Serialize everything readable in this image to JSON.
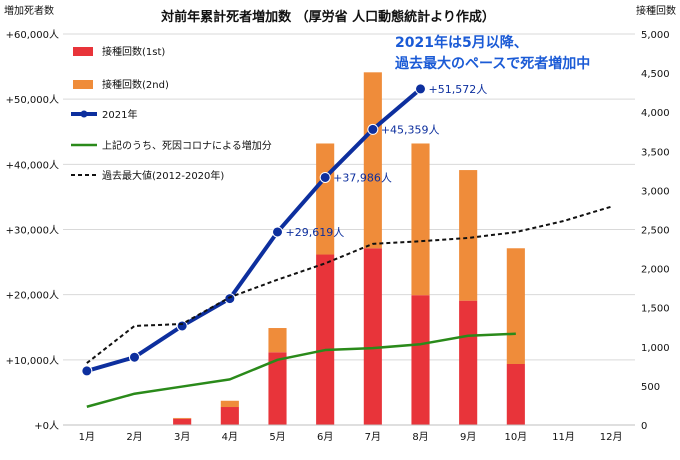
{
  "chart_data": {
    "type": "bar",
    "title": "対前年累計死者増加数 （厚労省 人口動態統計より作成）",
    "annotation": [
      "2021年は5月以降、",
      "過去最大のペースで死者増加中"
    ],
    "ylabel_left": "増加死者数",
    "ylabel_right": "接種回数",
    "categories": [
      "1月",
      "2月",
      "3月",
      "4月",
      "5月",
      "6月",
      "7月",
      "8月",
      "9月",
      "10月",
      "11月",
      "12月"
    ],
    "ylim_left": [
      0,
      60000
    ],
    "ylim_right": [
      0,
      5000
    ],
    "left_ticks": [
      {
        "value": 0,
        "label": "+0人"
      },
      {
        "value": 10000,
        "label": "+10,000人"
      },
      {
        "value": 20000,
        "label": "+20,000人"
      },
      {
        "value": 30000,
        "label": "+30,000人"
      },
      {
        "value": 40000,
        "label": "+40,000人"
      },
      {
        "value": 50000,
        "label": "+50,000人"
      },
      {
        "value": 60000,
        "label": "+60,000人"
      }
    ],
    "right_ticks": [
      {
        "value": 0,
        "label": "0"
      },
      {
        "value": 500,
        "label": "500"
      },
      {
        "value": 1000,
        "label": "1,000"
      },
      {
        "value": 1500,
        "label": "1,500"
      },
      {
        "value": 2000,
        "label": "2,000"
      },
      {
        "value": 2500,
        "label": "2,500"
      },
      {
        "value": 3000,
        "label": "3,000"
      },
      {
        "value": 3500,
        "label": "3,500"
      },
      {
        "value": 4000,
        "label": "4,000"
      },
      {
        "value": 4500,
        "label": "4,500"
      },
      {
        "value": 5000,
        "label": "5,000"
      }
    ],
    "grid": true,
    "legend_position": "top-left",
    "series": [
      {
        "name": "接種回数(1st)",
        "kind": "bar",
        "axis": "right",
        "color": "#e8343a",
        "values": [
          null,
          null,
          80,
          230,
          930,
          2180,
          2260,
          1660,
          1590,
          780,
          null,
          null
        ]
      },
      {
        "name": "接種回数(2nd)",
        "kind": "bar",
        "axis": "right",
        "color": "#ef8c3a",
        "values": [
          null,
          null,
          10,
          80,
          310,
          1420,
          2250,
          1940,
          1670,
          1480,
          null,
          null
        ]
      },
      {
        "name": "2021年",
        "kind": "line",
        "axis": "left",
        "color": "#0d2f9e",
        "values": [
          8300,
          10400,
          15200,
          19400,
          29619,
          37986,
          45359,
          51572,
          null,
          null,
          null,
          null
        ]
      },
      {
        "name": "上記のうち、死因コロナによる増加分",
        "kind": "line",
        "axis": "left",
        "color": "#2a8a1a",
        "values": [
          2800,
          4800,
          5900,
          7000,
          10000,
          11500,
          11800,
          12400,
          13700,
          14000,
          null,
          null
        ]
      },
      {
        "name": "過去最大値(2012-2020年)",
        "kind": "line",
        "axis": "left",
        "color": "#111111",
        "dashed": true,
        "values": [
          9500,
          15200,
          15500,
          19600,
          22300,
          24800,
          27800,
          28200,
          28700,
          29600,
          31300,
          33500
        ]
      }
    ],
    "data_labels": [
      {
        "series": "2021年",
        "index": 4,
        "text": "+29,619人"
      },
      {
        "series": "2021年",
        "index": 5,
        "text": "+37,986人"
      },
      {
        "series": "2021年",
        "index": 6,
        "text": "+45,359人"
      },
      {
        "series": "2021年",
        "index": 7,
        "text": "+51,572人"
      }
    ]
  }
}
